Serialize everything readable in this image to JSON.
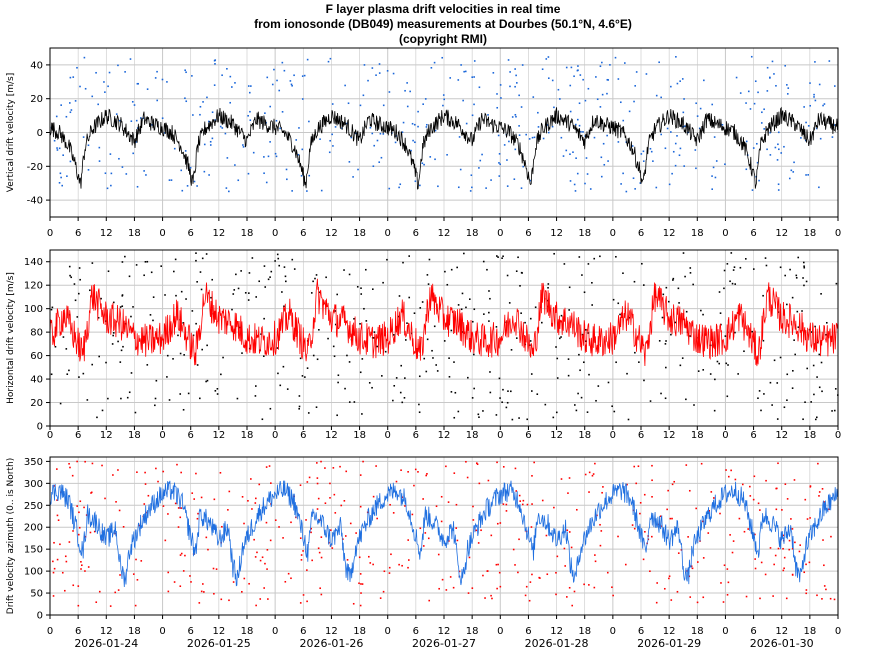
{
  "header": {
    "title_line1": "F layer plasma drift velocities in real time",
    "title_line2": "from ionosonde (DB049) measurements at Dourbes (50.1°N, 4.6°E)",
    "title_line3": "(copyright RMI)"
  },
  "colors": {
    "vertical_line": "#000000",
    "vertical_points": "#1a66d9",
    "horizontal_line": "#ff0000",
    "horizontal_points": "#000000",
    "azimuth_line": "#1f6fe0",
    "azimuth_points": "#ff0000",
    "grid": "#c8c8c8"
  },
  "chart_data": [
    {
      "type": "line",
      "ylabel": "Vertical drift velocity [m/s]",
      "ylim": [
        -50,
        50
      ],
      "yticks": [
        -40,
        -20,
        0,
        20,
        40
      ],
      "x_unit": "hours since 2026-01-24 00:00 UT",
      "xlim": [
        0,
        168
      ],
      "xtick_hours": [
        0,
        6,
        12,
        18
      ],
      "grid": true,
      "series": [
        {
          "style": "line",
          "daily_profile": [
            [
              0,
              3
            ],
            [
              2,
              0
            ],
            [
              4,
              -8
            ],
            [
              5.5,
              -20
            ],
            [
              6.5,
              -31
            ],
            [
              7.5,
              -8
            ],
            [
              9,
              2
            ],
            [
              12,
              10
            ],
            [
              15,
              5
            ],
            [
              18,
              -5
            ],
            [
              20,
              8
            ],
            [
              22,
              5
            ],
            [
              24,
              3
            ]
          ],
          "noise_amplitude": 5
        },
        {
          "style": "points",
          "value_range": [
            -35,
            45
          ]
        }
      ]
    },
    {
      "type": "line",
      "ylabel": "Horizontal drift velocity [m/s]",
      "ylim": [
        0,
        150
      ],
      "yticks": [
        0,
        20,
        40,
        60,
        80,
        100,
        120,
        140
      ],
      "x_unit": "hours since 2026-01-24 00:00 UT",
      "xlim": [
        0,
        168
      ],
      "xtick_hours": [
        0,
        6,
        12,
        18
      ],
      "grid": true,
      "series": [
        {
          "style": "line",
          "daily_profile": [
            [
              0,
              75
            ],
            [
              3,
              95
            ],
            [
              6,
              70
            ],
            [
              7,
              60
            ],
            [
              9,
              112
            ],
            [
              12,
              92
            ],
            [
              15,
              88
            ],
            [
              18,
              75
            ],
            [
              21,
              72
            ],
            [
              24,
              75
            ]
          ],
          "noise_amplitude": 15
        },
        {
          "style": "points",
          "value_range": [
            5,
            148
          ]
        }
      ]
    },
    {
      "type": "line",
      "ylabel": "Drift velocity azimuth (0.. is North)",
      "ylim": [
        0,
        360
      ],
      "yticks": [
        0,
        50,
        100,
        150,
        200,
        250,
        300,
        350
      ],
      "x_unit": "hours since 2026-01-24 00:00 UT",
      "xlim": [
        0,
        168
      ],
      "xtick_hours": [
        0,
        6,
        12,
        18
      ],
      "grid": true,
      "xdate_labels": [
        "2026-01-24",
        "2026-01-25",
        "2026-01-26",
        "2026-01-27",
        "2026-01-28",
        "2026-01-29",
        "2026-01-30"
      ],
      "series": [
        {
          "style": "line",
          "daily_profile": [
            [
              0,
              275
            ],
            [
              2,
              285
            ],
            [
              4,
              260
            ],
            [
              6,
              180
            ],
            [
              7,
              140
            ],
            [
              8,
              230
            ],
            [
              10,
              210
            ],
            [
              12,
              170
            ],
            [
              14,
              200
            ],
            [
              15,
              110
            ],
            [
              16,
              80
            ],
            [
              17,
              150
            ],
            [
              19,
              200
            ],
            [
              21,
              240
            ],
            [
              23,
              265
            ],
            [
              24,
              275
            ]
          ],
          "noise_amplitude": 25
        },
        {
          "style": "points",
          "value_range": [
            20,
            350
          ]
        }
      ]
    }
  ]
}
